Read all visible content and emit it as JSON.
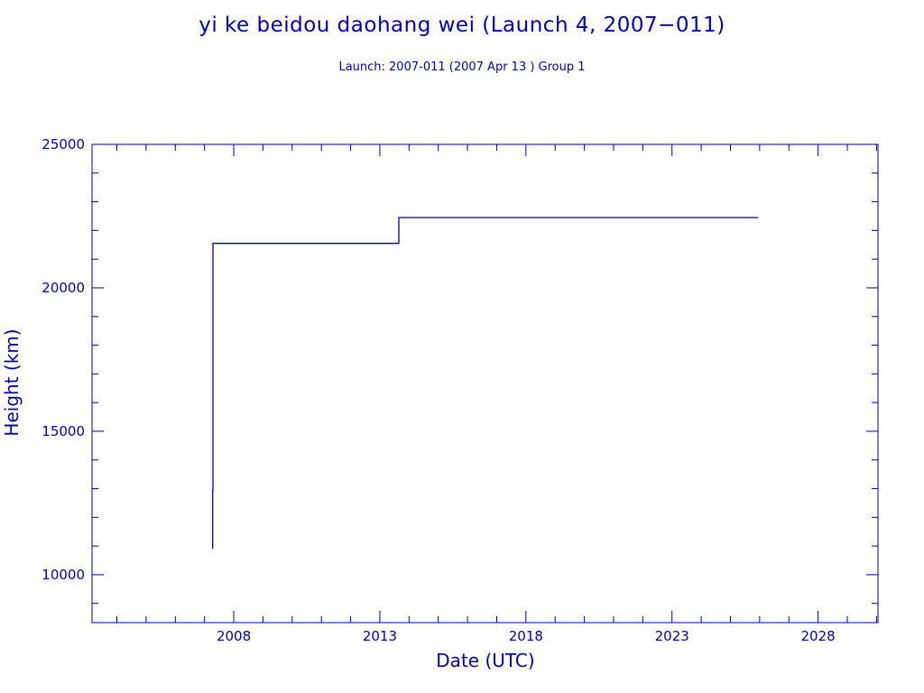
{
  "chart_data": {
    "type": "line",
    "title": "yi ke beidou daohang wei (Launch 4, 2007−011)",
    "subtitle": "Launch: 2007-011  (2007 Apr 13 )  Group 1",
    "xlabel": "Date (UTC)",
    "ylabel": "Height (km)",
    "xlim": [
      2003.15,
      2030.05
    ],
    "ylim": [
      8330,
      25000
    ],
    "x_ticks": [
      2008,
      2013,
      2018,
      2023,
      2028
    ],
    "x_tick_labels": [
      "2008",
      "2013",
      "2018",
      "2023",
      "2028"
    ],
    "y_ticks": [
      10000,
      15000,
      20000,
      25000
    ],
    "y_tick_labels": [
      "10000",
      "15000",
      "20000",
      "25000"
    ],
    "grid": false,
    "color": "#0000a0",
    "series": [
      {
        "x": [
          2007.28,
          2007.28,
          2007.29,
          2007.29,
          2013.65,
          2013.65,
          2025.95
        ],
        "y": [
          10900,
          12950,
          12950,
          21550,
          21550,
          22450,
          22450
        ]
      }
    ]
  }
}
